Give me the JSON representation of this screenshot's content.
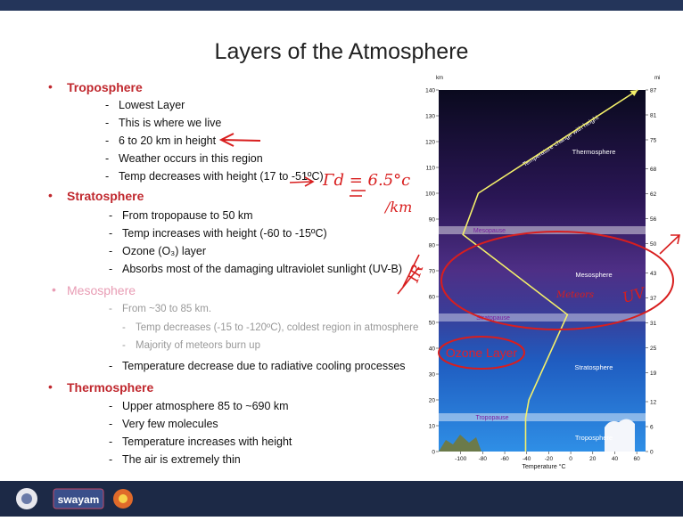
{
  "slide": {
    "title": "Layers of the Atmosphere",
    "sections": [
      {
        "heading": "Troposphere",
        "items": [
          "Lowest Layer",
          "This is where we live",
          "6 to 20 km in height",
          "Weather occurs in this region",
          "Temp decreases with height (17 to -51ºC)"
        ]
      },
      {
        "heading": "Stratosphere",
        "items": [
          "From tropopause to 50 km",
          "Temp increases with height  (-60 to -15ºC)",
          "Ozone (O₃) layer",
          "Absorbs most of the damaging ultraviolet sunlight (UV-B)"
        ]
      },
      {
        "heading": "Mesosphere",
        "items": [
          "From ~30 to 85 km.",
          "Temp decreases (-15 to -120ºC), coldest region in atmosphere",
          "Majority of meteors burn up",
          "Temperature decrease due to radiative cooling processes"
        ]
      },
      {
        "heading": "Thermosphere",
        "items": [
          "Upper atmosphere 85 to ~690 km",
          "Very few molecules",
          "Temperature increases with height",
          "The air is extremely thin"
        ]
      }
    ]
  },
  "figure": {
    "y_label": "km",
    "y2_label": "mi",
    "x_label": "Temperature °C",
    "xlim": [
      -120,
      68
    ],
    "ylim": [
      0,
      140
    ],
    "y2lim": [
      0,
      87
    ],
    "xticks": [
      -100,
      -80,
      -60,
      -40,
      -20,
      0,
      20,
      40,
      60
    ],
    "yticks": [
      0,
      10,
      20,
      30,
      40,
      50,
      60,
      70,
      80,
      90,
      100,
      110,
      120,
      130,
      140
    ],
    "y2ticks": [
      0,
      6,
      12,
      19,
      25,
      31,
      37,
      43,
      50,
      56,
      62,
      68,
      75,
      81,
      87
    ],
    "profile": {
      "temperature": [
        -41,
        -41,
        -38,
        -3,
        -98,
        -84,
        61
      ],
      "height": [
        0,
        13,
        20,
        53,
        84,
        100,
        140
      ]
    },
    "curve_label": "Temperature change with height",
    "layers": {
      "thermosphere": "Thermosphere",
      "mesopause": "Mesopause",
      "mesosphere": "Mesosphere",
      "stratopause": "Stratopause",
      "stratosphere": "Stratosphere",
      "tropopause": "Tropopause",
      "troposphere": "Troposphere"
    },
    "ozone": "Ozone Layer"
  },
  "annotations": {
    "lapse_rate": "Γd = 6.5°c",
    "lapse_unit": "/km",
    "ir": "IR",
    "meteors": "Meteors",
    "uv": "UV"
  },
  "footer": {
    "logo_text": "swayam"
  }
}
